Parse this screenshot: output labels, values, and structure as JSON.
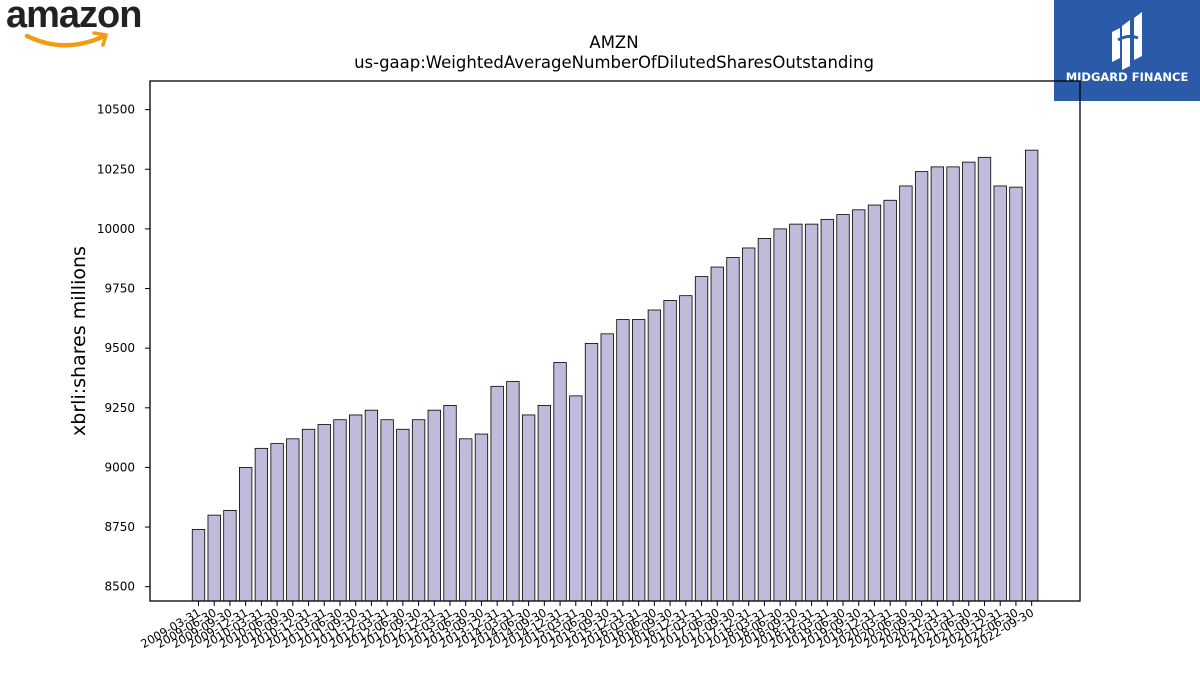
{
  "logos": {
    "left_brand": "amazon",
    "right_brand": "MIDGARD FINANCE",
    "right_bg_color": "#2a5aa8",
    "smile_color": "#f39c12"
  },
  "chart_data": {
    "type": "bar",
    "title": "AMZN",
    "subtitle": "us-gaap:WeightedAverageNumberOfDilutedSharesOutstanding",
    "xlabel": "",
    "ylabel": "xbrli:shares millions",
    "ylim": [
      8440,
      10620
    ],
    "yticks": [
      8500,
      8750,
      9000,
      9250,
      9500,
      9750,
      10000,
      10250,
      10500
    ],
    "bar_color": "#bfbbdb",
    "bar_edge_color": "#000000",
    "grid": false,
    "categories": [
      "2009-03-31",
      "2009-06-30",
      "2009-09-30",
      "2009-12-31",
      "2010-03-31",
      "2010-06-30",
      "2010-09-30",
      "2010-12-31",
      "2011-03-31",
      "2011-06-30",
      "2011-09-30",
      "2011-12-31",
      "2012-03-31",
      "2012-06-30",
      "2012-09-30",
      "2012-12-31",
      "2013-03-31",
      "2013-06-30",
      "2013-09-30",
      "2013-12-31",
      "2014-03-31",
      "2014-06-30",
      "2014-09-30",
      "2014-12-31",
      "2015-03-31",
      "2015-06-30",
      "2015-09-30",
      "2015-12-31",
      "2016-03-31",
      "2016-06-30",
      "2016-09-30",
      "2016-12-31",
      "2017-03-31",
      "2017-06-30",
      "2017-09-30",
      "2017-12-31",
      "2018-03-31",
      "2018-06-30",
      "2018-09-30",
      "2018-12-31",
      "2019-03-31",
      "2019-06-30",
      "2019-09-30",
      "2019-12-31",
      "2020-03-31",
      "2020-06-30",
      "2020-09-30",
      "2020-12-31",
      "2021-03-31",
      "2021-06-30",
      "2021-09-30",
      "2021-12-31",
      "2022-06-30",
      "2022-09-30"
    ],
    "values": [
      8740,
      8800,
      8820,
      9000,
      9080,
      9100,
      9120,
      9160,
      9180,
      9200,
      9220,
      9240,
      9200,
      9160,
      9200,
      9240,
      9260,
      9120,
      9140,
      9340,
      9360,
      9220,
      9260,
      9440,
      9300,
      9520,
      9560,
      9620,
      9620,
      9660,
      9700,
      9720,
      9800,
      9840,
      9880,
      9920,
      9960,
      10000,
      10020,
      10020,
      10040,
      10060,
      10080,
      10100,
      10120,
      10180,
      10240,
      10260,
      10260,
      10280,
      10300,
      10180,
      10175,
      10330
    ]
  }
}
